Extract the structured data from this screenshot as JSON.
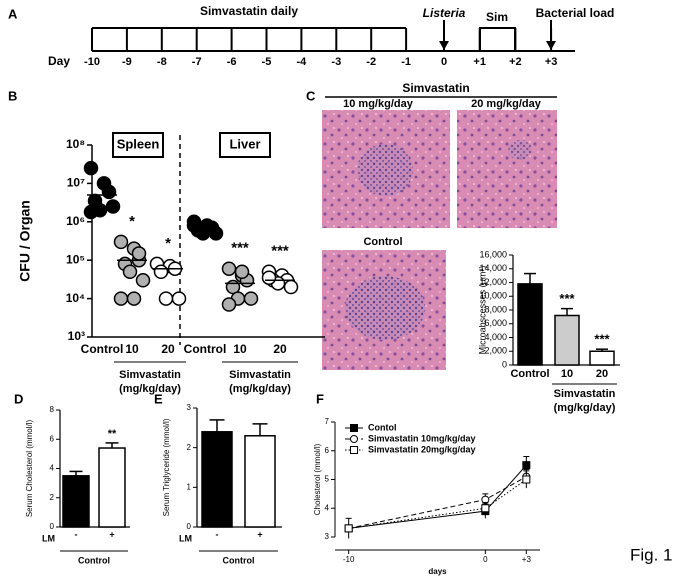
{
  "figure_label": "Fig. 1",
  "panels": [
    "A",
    "B",
    "C",
    "D",
    "E",
    "F"
  ],
  "timeline": {
    "day_label": "Day",
    "days": [
      "-10",
      "-9",
      "-8",
      "-7",
      "-6",
      "-5",
      "-4",
      "-3",
      "-2",
      "-1",
      "0",
      "+1",
      "+2",
      "+3"
    ],
    "treatment": "Simvastatin daily",
    "infection": "Listeria",
    "sim": "Sim",
    "readout": "Bacterial load"
  },
  "histology": {
    "title": "Simvastatin",
    "images": [
      "10 mg/kg/day",
      "20 mg/kg/day",
      "Control"
    ]
  },
  "chart_data": [
    {
      "type": "scatter",
      "ylabel": "CFU / Organ",
      "log_y": true,
      "ylim": [
        1000,
        100000000
      ],
      "yticks": [
        {
          "value": 1000,
          "label": "10³"
        },
        {
          "value": 10000,
          "label": "10⁴"
        },
        {
          "value": 100000,
          "label": "10⁵"
        },
        {
          "value": 1000000,
          "label": "10⁶"
        },
        {
          "value": 10000000,
          "label": "10⁷"
        },
        {
          "value": 100000000,
          "label": "10⁸"
        }
      ],
      "categories": [
        "Control",
        "10",
        "20",
        "Control",
        "10",
        "20"
      ],
      "organs": [
        "Spleen",
        "Liver"
      ],
      "points": [
        [
          25000000,
          10000000,
          6000000,
          3500000,
          2000000,
          2500000,
          1800000
        ],
        [
          300000,
          200000,
          100000,
          80000,
          50000,
          30000,
          10000,
          10000,
          150000
        ],
        [
          80000,
          70000,
          60000,
          50000,
          10000,
          10000
        ],
        [
          1000000,
          800000,
          700000,
          600000,
          500000,
          500000,
          800000
        ],
        [
          60000,
          40000,
          30000,
          20000,
          10000,
          10000,
          7000,
          50000
        ],
        [
          50000,
          40000,
          30000,
          30000,
          25000,
          20000,
          35000
        ]
      ],
      "means": [
        5000000,
        100000,
        60000,
        700000,
        25000,
        30000
      ],
      "colors": [
        "#000000",
        "#b0b0b0",
        "#ffffff",
        "#000000",
        "#b0b0b0",
        "#ffffff"
      ],
      "significance": [
        null,
        "*",
        "*",
        null,
        "***",
        "***"
      ],
      "group_label": [
        "Simvastatin",
        "(mg/kg/day)"
      ]
    },
    {
      "type": "bar",
      "ylabel": "Microabscesses (μm²)",
      "ylim": [
        0,
        16000
      ],
      "yticks": [
        0,
        {
          "value": 2000,
          "label": "2,000"
        },
        {
          "value": 4000,
          "label": "4,000"
        },
        {
          "value": 6000,
          "label": "6,000"
        },
        {
          "value": 8000,
          "label": "8,000"
        },
        {
          "value": 10000,
          "label": "10,000"
        },
        {
          "value": 12000,
          "label": "12,000"
        },
        {
          "value": 14000,
          "label": "14,000"
        },
        {
          "value": 16000,
          "label": "16,000"
        }
      ],
      "categories": [
        "Control",
        "10",
        "20"
      ],
      "values": [
        11800,
        7200,
        2000
      ],
      "errors": [
        1500,
        1000,
        300
      ],
      "colors": [
        "#000000",
        "#cccccc",
        "#ffffff"
      ],
      "significance": [
        null,
        "***",
        "***"
      ],
      "group_label": [
        "Simvastatin",
        "(mg/kg/day)"
      ]
    },
    {
      "type": "bar",
      "ylabel": "Serum Cholesterol (mmol/l)",
      "ylim": [
        0,
        8
      ],
      "yticks": [
        0,
        2,
        4,
        6,
        8
      ],
      "categories": [
        "-",
        "+"
      ],
      "factor": "LM",
      "values": [
        3.5,
        5.4
      ],
      "errors": [
        0.3,
        0.35
      ],
      "colors": [
        "#000000",
        "#ffffff"
      ],
      "significance": [
        null,
        "**"
      ],
      "group_label": [
        "Control"
      ]
    },
    {
      "type": "bar",
      "ylabel": "Serum Triglyceride (mmol/l)",
      "ylim": [
        0,
        3
      ],
      "yticks": [
        0,
        1,
        2,
        3
      ],
      "categories": [
        "-",
        "+"
      ],
      "factor": "LM",
      "values": [
        2.4,
        2.3
      ],
      "errors": [
        0.3,
        0.3
      ],
      "colors": [
        "#000000",
        "#ffffff"
      ],
      "significance": [
        null,
        null
      ],
      "group_label": [
        "Control"
      ]
    },
    {
      "type": "line",
      "xlabel": "days",
      "ylabel": "Cholesterol (mmol/l)",
      "xlim": [
        -11,
        4
      ],
      "ylim": [
        3,
        7
      ],
      "xticks": [
        -10,
        0,
        {
          "value": 3,
          "label": "+3"
        }
      ],
      "yticks": [
        3,
        4,
        5,
        6,
        7
      ],
      "x": [
        -10,
        0,
        3
      ],
      "series": [
        {
          "name": "Contol",
          "color": "#000000",
          "marker": "square-filled",
          "line_style": "solid",
          "values": [
            3.3,
            3.9,
            5.5
          ],
          "errors": [
            0.35,
            0.25,
            0.3
          ]
        },
        {
          "name": "Simvastatin 10mg/kg/day",
          "color": "#000000",
          "marker": "circle-open",
          "line_style": "dashed",
          "values": [
            3.3,
            4.3,
            5.1
          ],
          "errors": [
            0.1,
            0.2,
            0.25
          ]
        },
        {
          "name": "Simvastatin 20mg/kg/day",
          "color": "#000000",
          "marker": "square-open",
          "line_style": "dotted",
          "values": [
            3.3,
            4.0,
            5.0
          ],
          "errors": [
            0.1,
            0.2,
            0.3
          ]
        }
      ]
    }
  ]
}
